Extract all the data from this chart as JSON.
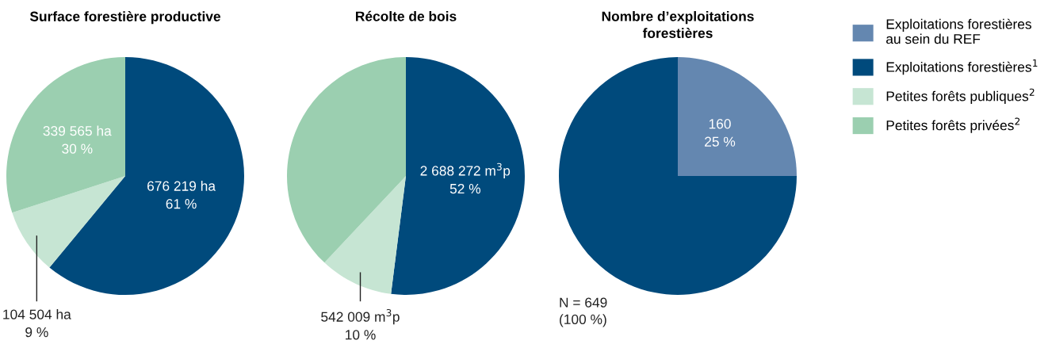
{
  "chart_data": [
    {
      "type": "pie",
      "title": "Surface forestière productive",
      "categories": [
        "Exploitations forestières$^{1}$",
        "Petites forêts publiques$^{2}$",
        "Petites forêts privées$^{2}$"
      ],
      "values": [
        61,
        9,
        30
      ],
      "colors": [
        "#004a7c",
        "#c6e5d3",
        "#9bcfb0"
      ],
      "value_labels": [
        "676 219 ha\n61 %",
        "104 504 ha\n9 %",
        "339 565 ha\n30 %"
      ],
      "legend": "right"
    },
    {
      "type": "pie",
      "title": "Récolte de bois",
      "categories": [
        null,
        null,
        null
      ],
      "values": [
        52,
        10,
        38
      ],
      "colors": [
        "#004a7c",
        "#c6e5d3",
        "#9bcfb0"
      ],
      "value_labels": [
        "2 688 272 m$^{3}$p\n52 %",
        "542 009 m$^{3}$p\n10 %",
        null
      ]
    },
    {
      "type": "pie",
      "title": "Nombre d’exploitations\nforestières",
      "categories": [
        "Exploitations forestières\nau sein du REF",
        null
      ],
      "values": [
        25,
        75
      ],
      "colors": [
        "#6487b0",
        "#004a7c"
      ],
      "value_labels": [
        "160\n25 %",
        null
      ],
      "annotations": [
        "N = 649\n(100 %)"
      ],
      "legend": "right"
    }
  ]
}
